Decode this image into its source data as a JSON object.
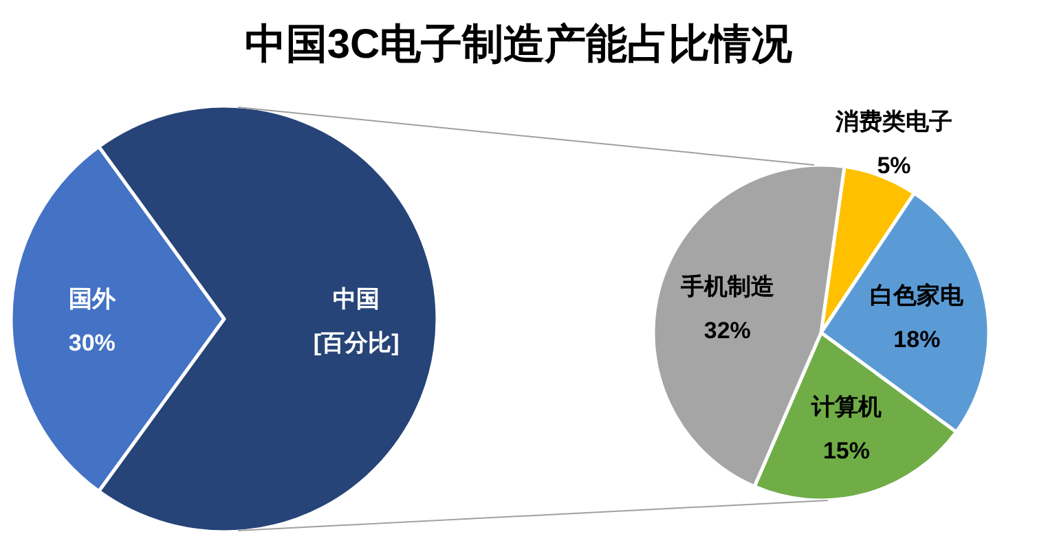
{
  "chart_data": [
    {
      "type": "pie",
      "title": "中国3C电子制造产能占比情况",
      "categories": [
        "国外",
        "中国"
      ],
      "values": [
        30,
        70
      ],
      "colors": [
        "#4472c4",
        "#264478"
      ],
      "value_labels": [
        "30%",
        "[百分比]"
      ]
    },
    {
      "type": "pie",
      "categories": [
        "消费类电子",
        "白色家电",
        "计算机",
        "手机制造"
      ],
      "values": [
        5,
        18,
        15,
        32
      ],
      "colors": [
        "#ffc000",
        "#5b9bd5",
        "#70ad47",
        "#a5a5a5"
      ],
      "value_labels": [
        "5%",
        "18%",
        "15%",
        "32%"
      ]
    }
  ]
}
